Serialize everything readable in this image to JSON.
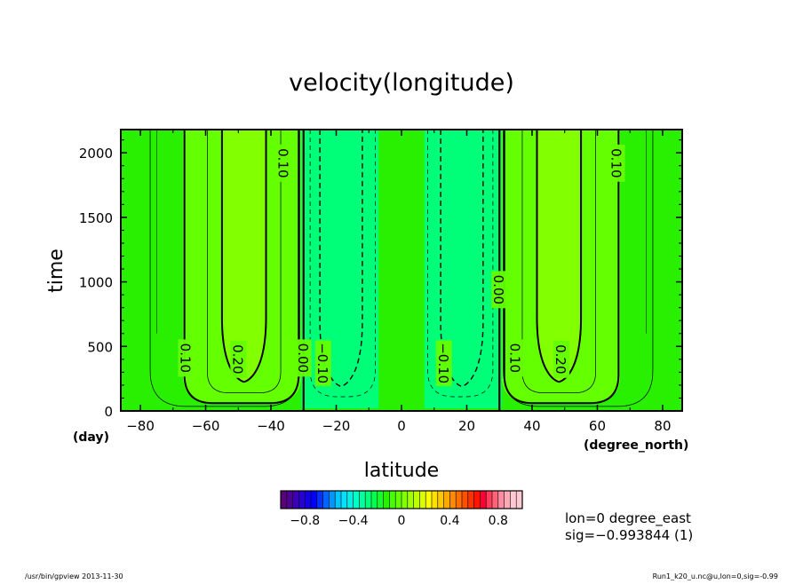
{
  "chart_data": {
    "type": "contour",
    "title": "velocity(longitude)",
    "xlabel": "latitude",
    "ylabel": "time",
    "x_unit": "(degree_north)",
    "y_unit": "(day)",
    "xlim": [
      -86,
      86
    ],
    "ylim": [
      0,
      2180
    ],
    "x_ticks": [
      "−80",
      "−60",
      "−40",
      "−20",
      "0",
      "20",
      "40",
      "60",
      "80"
    ],
    "x_tick_values": [
      -80,
      -60,
      -40,
      -20,
      0,
      20,
      40,
      60,
      80
    ],
    "y_ticks": [
      "0",
      "500",
      "1000",
      "1500",
      "2000"
    ],
    "y_tick_values": [
      0,
      500,
      1000,
      1500,
      2000
    ],
    "contour_labels": [
      {
        "text": "0.10",
        "lat": -66,
        "time": 410
      },
      {
        "text": "0.20",
        "lat": -50,
        "time": 400
      },
      {
        "text": "0.00",
        "lat": -30,
        "time": 410
      },
      {
        "text": "−0.10",
        "lat": -24,
        "time": 370
      },
      {
        "text": "0.10",
        "lat": -36,
        "time": 1920
      },
      {
        "text": "−0.10",
        "lat": 13,
        "time": 370
      },
      {
        "text": "0.00",
        "lat": 30,
        "time": 940
      },
      {
        "text": "0.10",
        "lat": 35,
        "time": 410
      },
      {
        "text": "0.20",
        "lat": 49,
        "time": 400
      },
      {
        "text": "0.10",
        "lat": 66,
        "time": 1920
      }
    ],
    "positive_jets": [
      {
        "center_lat": -48,
        "peak_min": 0.2
      },
      {
        "center_lat": 48,
        "peak_min": 0.2
      }
    ],
    "negative_jets": [
      {
        "center_lat": -18,
        "peak_max": -0.1
      },
      {
        "center_lat": 18,
        "peak_max": -0.1
      }
    ],
    "zero_lines_lat": [
      -30,
      30
    ],
    "colorbar": {
      "tick_labels": [
        "−0.8",
        "−0.4",
        "0",
        "0.4",
        "0.8"
      ],
      "tick_values": [
        -0.8,
        -0.4,
        0,
        0.4,
        0.8
      ],
      "range": [
        -1.0,
        1.0
      ],
      "step": 0.05,
      "colors": [
        "#5a0078",
        "#4e0096",
        "#3c00b4",
        "#2800d2",
        "#1400e6",
        "#0000ff",
        "#0032ff",
        "#0064ff",
        "#0096ff",
        "#00c8ff",
        "#00e1ff",
        "#00f0e6",
        "#00ffc8",
        "#00ffa0",
        "#00ff78",
        "#00ff50",
        "#14ff28",
        "#28f000",
        "#46ff00",
        "#64ff00",
        "#82ff00",
        "#a0ff00",
        "#beff00",
        "#dcff00",
        "#ffff00",
        "#ffe100",
        "#ffc800",
        "#ffaa00",
        "#ff8c00",
        "#ff6e00",
        "#ff5000",
        "#ff3200",
        "#ff1400",
        "#ff0032",
        "#ff3c5a",
        "#ff6478",
        "#ff8ca0",
        "#ffaab4",
        "#ffc8d2",
        "#ffc8d2"
      ]
    },
    "field_colors": {
      "background": "#28f000",
      "band_01_02": "#64ff00",
      "band_02_up": "#82ff00",
      "band_neg": "#00ff78"
    }
  },
  "annotations": {
    "lon": "lon=0 degree_east",
    "sig": "sig=−0.993844 (1)"
  },
  "footer": {
    "left": "/usr/bin/gpview   2013-11-30",
    "right": "Run1_k20_u.nc@u,lon=0,sig=-0.99"
  }
}
